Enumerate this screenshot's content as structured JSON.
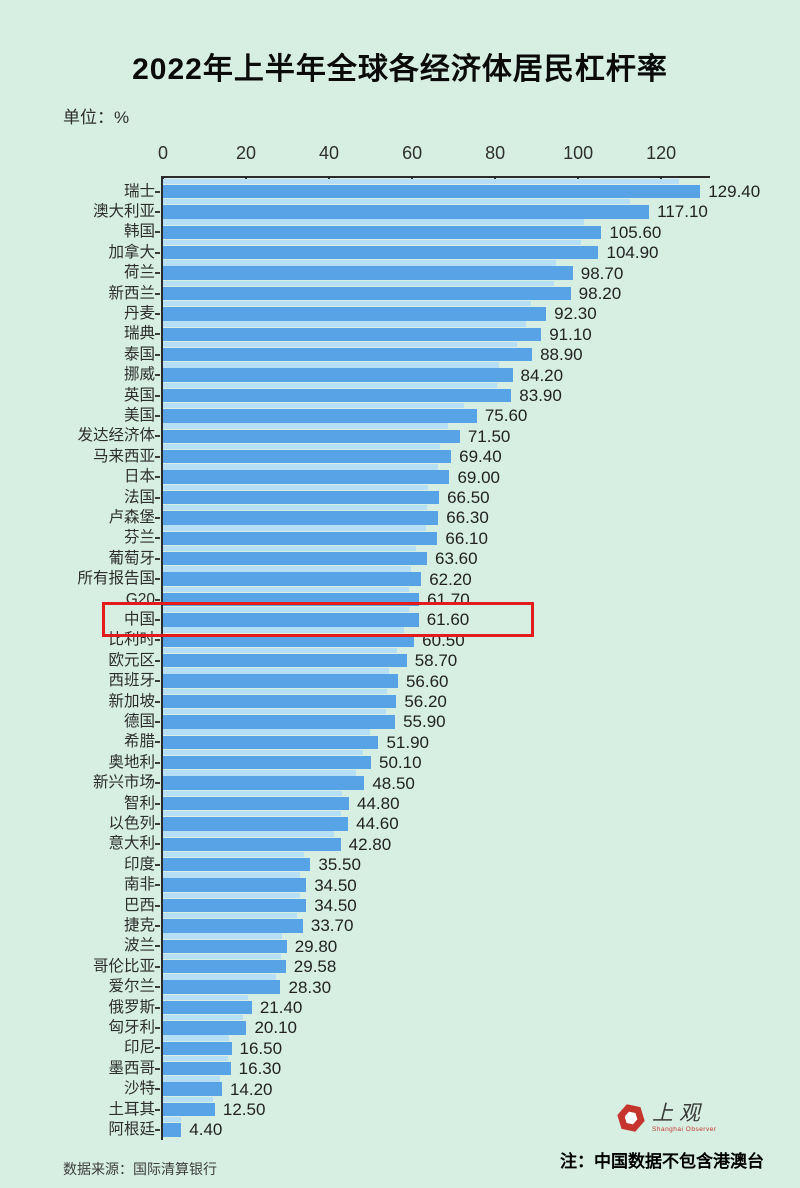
{
  "title": "2022年上半年全球各经济体居民杠杆率",
  "unit_label": "单位：%",
  "chart_data": {
    "type": "bar",
    "orientation": "horizontal",
    "title": "2022年上半年全球各经济体居民杠杆率",
    "unit": "%",
    "xlabel": "",
    "ylabel": "",
    "xlim": [
      0,
      135
    ],
    "axis_ticks": [
      0,
      20,
      40,
      60,
      80,
      100,
      120
    ],
    "grid": false,
    "legend": false,
    "bar_color": "#58a3e6",
    "bar_shadow_color": "#b6def5",
    "highlighted_category": "中国",
    "categories": [
      "瑞士",
      "澳大利亚",
      "韩国",
      "加拿大",
      "荷兰",
      "新西兰",
      "丹麦",
      "瑞典",
      "泰国",
      "挪威",
      "英国",
      "美国",
      "发达经济体",
      "马来西亚",
      "日本",
      "法国",
      "卢森堡",
      "芬兰",
      "葡萄牙",
      "所有报告国",
      "G20",
      "中国",
      "比利时",
      "欧元区",
      "西班牙",
      "新加坡",
      "德国",
      "希腊",
      "奥地利",
      "新兴市场",
      "智利",
      "以色列",
      "意大利",
      "印度",
      "南非",
      "巴西",
      "捷克",
      "波兰",
      "哥伦比亚",
      "爱尔兰",
      "俄罗斯",
      "匈牙利",
      "印尼",
      "墨西哥",
      "沙特",
      "土耳其",
      "阿根廷"
    ],
    "values": [
      129.4,
      117.1,
      105.6,
      104.9,
      98.7,
      98.2,
      92.3,
      91.1,
      88.9,
      84.2,
      83.9,
      75.6,
      71.5,
      69.4,
      69.0,
      66.5,
      66.3,
      66.1,
      63.6,
      62.2,
      61.7,
      61.6,
      60.5,
      58.7,
      56.6,
      56.2,
      55.9,
      51.9,
      50.1,
      48.5,
      44.8,
      44.6,
      42.8,
      35.5,
      34.5,
      34.5,
      33.7,
      29.8,
      29.58,
      28.3,
      21.4,
      20.1,
      16.5,
      16.3,
      14.2,
      12.5,
      4.4
    ]
  },
  "highlight": {
    "category": "中国",
    "color": "#e31b1b"
  },
  "footer": {
    "source": "数据来源：国际清算银行",
    "note": "注：中国数据不包含港澳台"
  },
  "logo": {
    "name": "上观",
    "subtitle": "Shanghai Observer",
    "color": "#c5352e"
  },
  "colors": {
    "background": "#d7efe3",
    "bar": "#58a3e6",
    "bar_shadow": "#b6def5",
    "axis": "#2b2b2b",
    "highlight": "#e31b1b"
  }
}
